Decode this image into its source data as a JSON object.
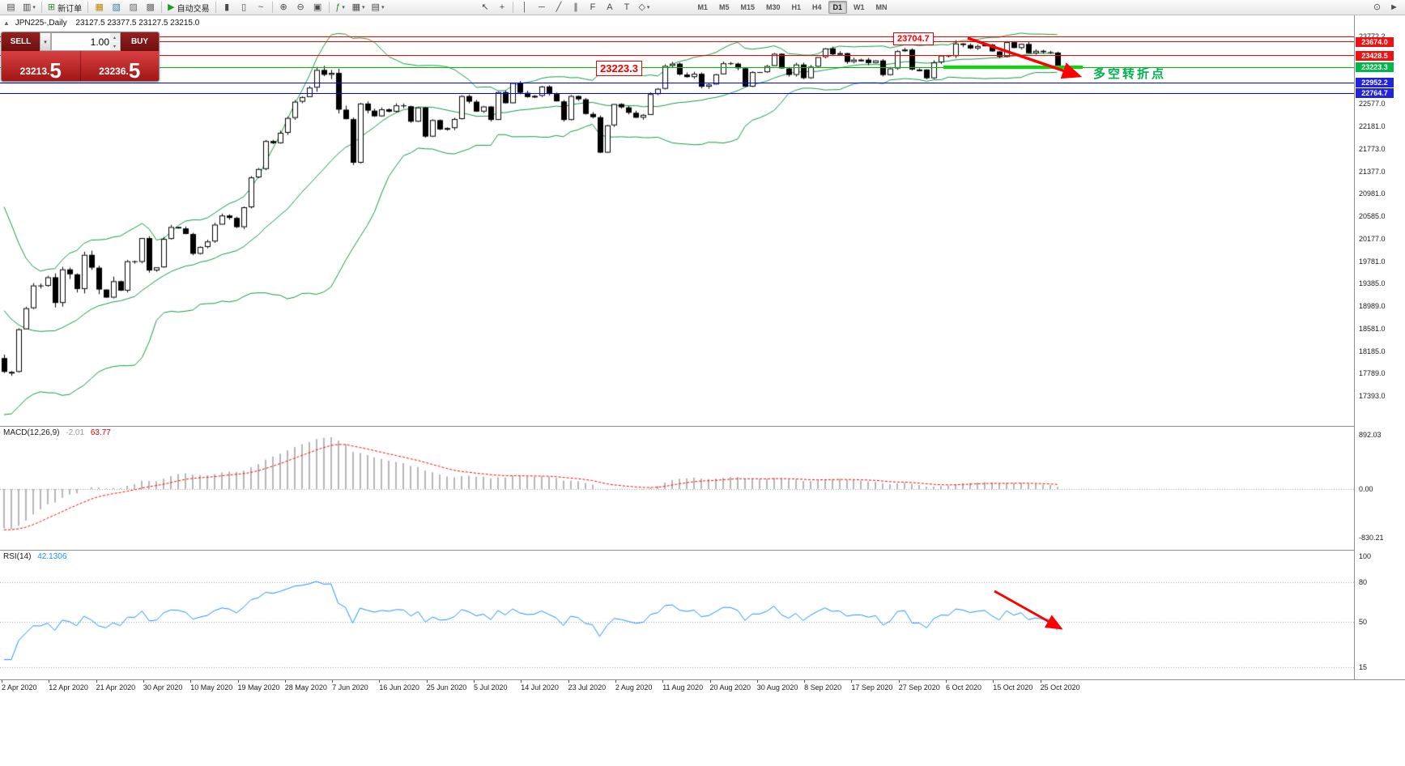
{
  "toolbar": {
    "items": [
      {
        "type": "icon",
        "name": "new-chart-icon",
        "glyph": "▤"
      },
      {
        "type": "icon",
        "name": "chart-profiles-icon",
        "glyph": "▥",
        "caret": true
      },
      {
        "type": "sep"
      },
      {
        "type": "button",
        "name": "new-order-button",
        "glyph": "⊞",
        "glyph_color": "#2e8b2e",
        "text": "新订单"
      },
      {
        "type": "sep"
      },
      {
        "type": "icon",
        "name": "market-watch-icon",
        "glyph": "▦",
        "glyph_color": "#b8860b"
      },
      {
        "type": "icon",
        "name": "data-window-icon",
        "glyph": "▧",
        "glyph_color": "#3a7ca5"
      },
      {
        "type": "icon",
        "name": "navigator-icon",
        "glyph": "▨",
        "glyph_color": "#6a6a6a"
      },
      {
        "type": "icon",
        "name": "terminal-icon",
        "glyph": "▩",
        "glyph_color": "#6a6a6a"
      },
      {
        "type": "sep"
      },
      {
        "type": "button",
        "name": "auto-trading-button",
        "glyph": "▶",
        "glyph_color": "#18a018",
        "text": "自动交易"
      },
      {
        "type": "sep"
      },
      {
        "type": "icon",
        "name": "bar-chart-mode-icon",
        "glyph": "▮"
      },
      {
        "type": "icon",
        "name": "candle-chart-mode-icon",
        "glyph": "▯"
      },
      {
        "type": "icon",
        "name": "line-chart-mode-icon",
        "glyph": "~"
      },
      {
        "type": "sep"
      },
      {
        "type": "icon",
        "name": "zoom-in-icon",
        "glyph": "⊕"
      },
      {
        "type": "icon",
        "name": "zoom-out-icon",
        "glyph": "⊖"
      },
      {
        "type": "icon",
        "name": "tile-windows-icon",
        "glyph": "▣"
      },
      {
        "type": "sep"
      },
      {
        "type": "icon",
        "name": "indicators-icon",
        "glyph": "ƒ",
        "glyph_color": "#2e8b2e",
        "caret": true
      },
      {
        "type": "icon",
        "name": "periods-icon",
        "glyph": "▦",
        "caret": true
      },
      {
        "type": "icon",
        "name": "templates-icon",
        "glyph": "▤",
        "caret": true
      },
      {
        "type": "space",
        "w": 110
      },
      {
        "type": "icon",
        "name": "cursor-icon",
        "glyph": "↖"
      },
      {
        "type": "icon",
        "name": "crosshair-icon",
        "glyph": "+"
      },
      {
        "type": "sep"
      },
      {
        "type": "icon",
        "name": "vertical-line-icon",
        "glyph": "│"
      },
      {
        "type": "icon",
        "name": "horizontal-line-icon",
        "glyph": "─"
      },
      {
        "type": "icon",
        "name": "trendline-icon",
        "glyph": "╱"
      },
      {
        "type": "icon",
        "name": "channel-icon",
        "glyph": "∥"
      },
      {
        "type": "icon",
        "name": "fibonacci-icon",
        "glyph": "F"
      },
      {
        "type": "icon",
        "name": "text-icon",
        "glyph": "A"
      },
      {
        "type": "icon",
        "name": "text-label-icon",
        "glyph": "T"
      },
      {
        "type": "icon",
        "name": "shapes-icon",
        "glyph": "◇",
        "caret": true
      },
      {
        "type": "space",
        "w": 48
      }
    ],
    "timeframes": {
      "options": [
        "M1",
        "M5",
        "M15",
        "M30",
        "H1",
        "H4",
        "D1",
        "W1",
        "MN"
      ],
      "active": "D1"
    },
    "right_items": [
      {
        "name": "search-icon",
        "glyph": "⊙"
      },
      {
        "name": "quick-nav-icon",
        "glyph": "►"
      }
    ]
  },
  "chart_header": {
    "collapse_glyph": "▲",
    "symbol": "JPN225-,Daily",
    "ohlc": "23127.5 23377.5 23127.5 23215.0"
  },
  "trade_panel": {
    "sell_label": "SELL",
    "buy_label": "BUY",
    "volume": "1.00",
    "sell_price": {
      "main": "23213.",
      "big": "5"
    },
    "buy_price": {
      "main": "23236.",
      "big": "5"
    }
  },
  "annotations": {
    "high_box": "23704.7",
    "level_box": "23223.3",
    "turning_text": "多空转折点"
  },
  "price_axis": {
    "plain_labels": [
      {
        "text": "23772.2",
        "value": 23772.2
      },
      {
        "text": "22577.0",
        "value": 22577
      },
      {
        "text": "22181.0",
        "value": 22181
      },
      {
        "text": "21773.0",
        "value": 21773
      },
      {
        "text": "21377.0",
        "value": 21377
      },
      {
        "text": "20981.0",
        "value": 20981
      },
      {
        "text": "20585.0",
        "value": 20585
      },
      {
        "text": "20177.0",
        "value": 20177
      },
      {
        "text": "19781.0",
        "value": 19781
      },
      {
        "text": "19385.0",
        "value": 19385
      },
      {
        "text": "18989.0",
        "value": 18989
      },
      {
        "text": "18581.0",
        "value": 18581
      },
      {
        "text": "18185.0",
        "value": 18185
      },
      {
        "text": "17789.0",
        "value": 17789
      },
      {
        "text": "17393.0",
        "value": 17393
      }
    ],
    "tagged_labels": [
      {
        "text": "23674.0",
        "value": 23674,
        "color": "#ee1111"
      },
      {
        "text": "23428.5",
        "value": 23428.5,
        "color": "#ee1111"
      },
      {
        "text": "23223.3",
        "value": 23223.3,
        "color": "#00b84a"
      },
      {
        "text": "22952.2",
        "value": 22952.2,
        "color": "#2222dd"
      },
      {
        "text": "22764.7",
        "value": 22764.7,
        "color": "#2222dd"
      }
    ]
  },
  "levels": [
    {
      "value": 23772.2,
      "color": "#ff0000"
    },
    {
      "value": 23674,
      "color": "#ff0000"
    },
    {
      "value": 23428.5,
      "color": "#ff0000"
    },
    {
      "value": 23223.3,
      "color": "#00bb00"
    },
    {
      "value": 22952.2,
      "color": "#0000ff"
    },
    {
      "value": 22764.7,
      "color": "#0000ff"
    }
  ],
  "highlight": {
    "value": 23223.3,
    "color": "#00e000"
  },
  "macd_panel": {
    "name": "MACD(12,26,9)",
    "value": "-2.01",
    "signal_value": "63.77",
    "scale": [
      "892.03",
      "0.00",
      "-830.21"
    ]
  },
  "rsi_panel": {
    "name": "RSI(14)",
    "value": "42.1306",
    "scale": [
      {
        "text": "100",
        "value": 100
      },
      {
        "text": "80",
        "value": 80
      },
      {
        "text": "50",
        "value": 50
      },
      {
        "text": "15",
        "value": 15
      }
    ],
    "levels": [
      80,
      50,
      15
    ]
  },
  "time_axis": [
    "2 Apr 2020",
    "12 Apr 2020",
    "21 Apr 2020",
    "30 Apr 2020",
    "10 May 2020",
    "19 May 2020",
    "28 May 2020",
    "7 Jun 2020",
    "16 Jun 2020",
    "25 Jun 2020",
    "5 Jul 2020",
    "14 Jul 2020",
    "23 Jul 2020",
    "2 Aug 2020",
    "11 Aug 2020",
    "20 Aug 2020",
    "30 Aug 2020",
    "8 Sep 2020",
    "17 Sep 2020",
    "27 Sep 2020",
    "6 Oct 2020",
    "15 Oct 2020",
    "25 Oct 2020"
  ],
  "colors": {
    "annotation_red": "#ee0000",
    "bull_green": "#00b050",
    "bollinger": "#119944",
    "macd_histogram": "#b6b6b6",
    "macd_signal": "#ff0000",
    "rsi_line": "#1e90ff",
    "panel_red": "#c32222"
  },
  "chart_data": {
    "type": "candlestick",
    "symbol": "JPN225",
    "timeframe": "Daily",
    "ylim": [
      17393,
      23772.2
    ],
    "bollinger": {
      "period": 20,
      "deviation": 2
    },
    "macd": {
      "fast": 12,
      "slow": 26,
      "signal": 9
    },
    "rsi": {
      "period": 14
    },
    "prehistory_closes": [
      21350,
      21100,
      20950,
      20800,
      20600,
      20300,
      20000,
      19700,
      19350,
      18950,
      18550,
      18200,
      17950,
      17820,
      17900,
      18080,
      18450,
      18700,
      18900,
      19020,
      18950,
      18065
    ],
    "closes": [
      17820,
      17820,
      18576,
      18950,
      19353,
      19346,
      19499,
      19043,
      19639,
      19551,
      19290,
      19897,
      19669,
      19281,
      19138,
      19429,
      19262,
      19783,
      19771,
      20194,
      19619,
      19675,
      20179,
      20391,
      20366,
      20267,
      19915,
      20037,
      20134,
      20433,
      20595,
      20552,
      20388,
      20741,
      21271,
      21419,
      21916,
      21878,
      22062,
      22326,
      22614,
      22696,
      22864,
      23178,
      23091,
      23125,
      22473,
      22305,
      21531,
      22582,
      22456,
      22355,
      22479,
      22437,
      22549,
      22534,
      22260,
      22512,
      21995,
      22288,
      22122,
      22146,
      22306,
      22714,
      22615,
      22439,
      22529,
      22291,
      22784,
      22587,
      22946,
      22771,
      22696,
      22718,
      22884,
      22752,
      22620,
      22290,
      22715,
      22657,
      22397,
      22339,
      21710,
      22195,
      22573,
      22514,
      22418,
      22330,
      22380,
      22750,
      22843,
      23249,
      23289,
      23096,
      23051,
      23110,
      22880,
      22920,
      23100,
      23296,
      23290,
      23208,
      22882,
      23139,
      23138,
      23247,
      23465,
      23205,
      23089,
      23274,
      23032,
      23235,
      23406,
      23559,
      23454,
      23475,
      23319,
      23360,
      23360,
      23300,
      23346,
      23087,
      23204,
      23511,
      23539,
      23185,
      23185,
      23030,
      23312,
      23433,
      23423,
      23647,
      23620,
      23559,
      23601,
      23627,
      23507,
      23411,
      23671,
      23567,
      23639,
      23474,
      23517,
      23494,
      23486,
      23215
    ]
  }
}
